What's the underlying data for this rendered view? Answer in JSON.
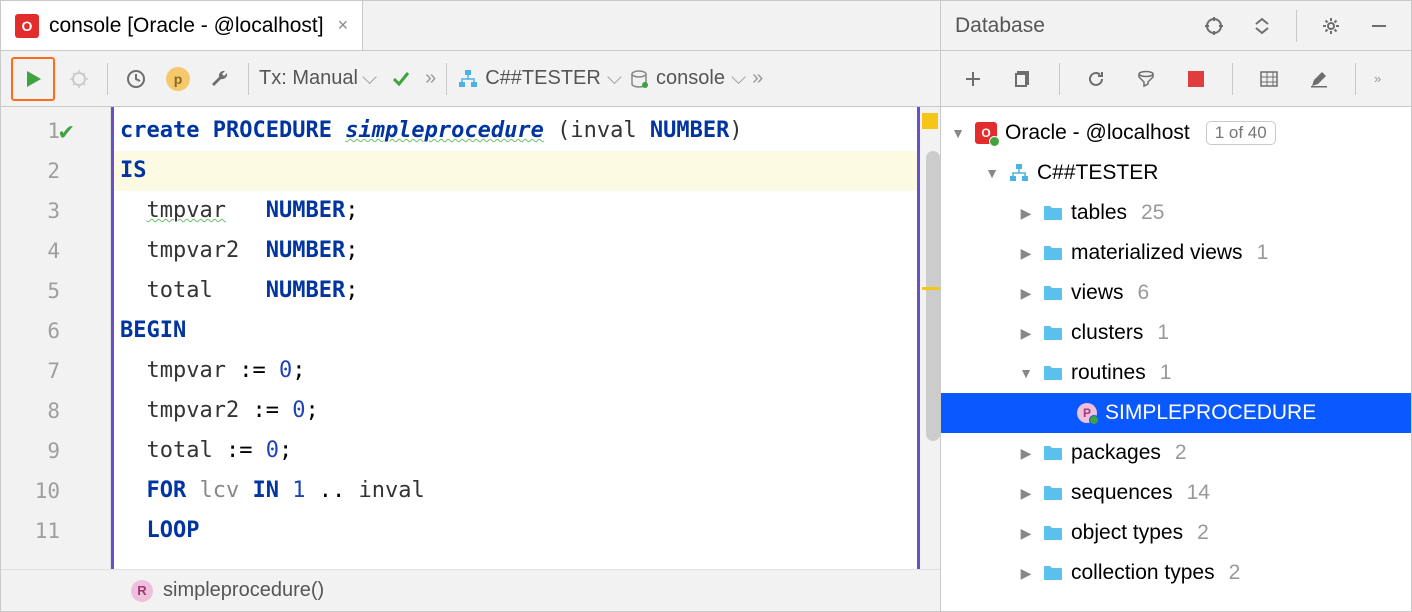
{
  "tab": {
    "title": "console [Oracle - @localhost]"
  },
  "toolbar": {
    "tx_label": "Tx: Manual",
    "schema": "C##TESTER",
    "session": "console"
  },
  "code": {
    "lines": [
      {
        "n": 1,
        "html": "<span class='kw'>create</span> <span class='kw'>PROCEDURE</span> <span class='ital wavy'>simpleprocedure</span> <span class='ident'>(inval</span> <span class='kw'>NUMBER</span><span class='ident'>)</span>"
      },
      {
        "n": 2,
        "html": "<span class='kw'>IS</span>",
        "hl": true
      },
      {
        "n": 3,
        "html": "  <span class='ident wavy'>tmpvar</span>   <span class='kw'>NUMBER</span>;"
      },
      {
        "n": 4,
        "html": "  <span class='ident'>tmpvar2</span>  <span class='kw'>NUMBER</span>;"
      },
      {
        "n": 5,
        "html": "  <span class='ident'>total</span>    <span class='kw'>NUMBER</span>;"
      },
      {
        "n": 6,
        "html": "<span class='kw'>BEGIN</span>"
      },
      {
        "n": 7,
        "html": "  <span class='ident'>tmpvar</span> := <span class='num'>0</span>;"
      },
      {
        "n": 8,
        "html": "  <span class='ident'>tmpvar2</span> := <span class='num'>0</span>;"
      },
      {
        "n": 9,
        "html": "  <span class='ident'>total</span> := <span class='num'>0</span>;"
      },
      {
        "n": 10,
        "html": "  <span class='kw'>FOR</span> <span class='ident' style='color:#888'>lcv</span> <span class='kw'>IN</span> <span class='num'>1</span> .. <span class='ident'>inval</span>"
      },
      {
        "n": 11,
        "html": "  <span class='kw'>LOOP</span>"
      }
    ]
  },
  "status": {
    "text": "simpleprocedure()"
  },
  "db": {
    "title": "Database",
    "root": {
      "label": "Oracle - @localhost",
      "badge": "1 of 40"
    },
    "schema": "C##TESTER",
    "nodes": [
      {
        "label": "tables",
        "count": 25
      },
      {
        "label": "materialized views",
        "count": 1
      },
      {
        "label": "views",
        "count": 6
      },
      {
        "label": "clusters",
        "count": 1
      },
      {
        "label": "routines",
        "count": 1,
        "expanded": true,
        "children": [
          {
            "label": "SIMPLEPROCEDURE",
            "selected": true,
            "proc": true
          }
        ]
      },
      {
        "label": "packages",
        "count": 2
      },
      {
        "label": "sequences",
        "count": 14
      },
      {
        "label": "object types",
        "count": 2
      },
      {
        "label": "collection types",
        "count": 2
      }
    ]
  },
  "colors": {
    "keyword": "#0034a0",
    "selection": "#0a58ff",
    "run_border": "#ff6b1a",
    "folder": "#4bb2e4",
    "bg_toolbar": "#f2f2f2"
  }
}
